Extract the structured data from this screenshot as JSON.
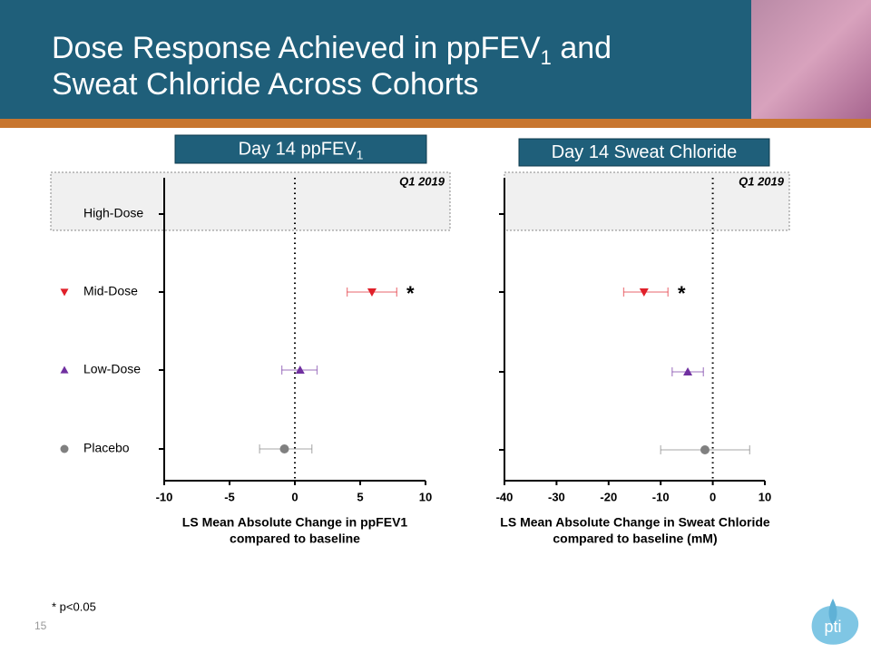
{
  "title": {
    "line1": [
      "Dose Response Achieved in ppFEV",
      "1",
      " and"
    ],
    "line2": "Sweat Chloride Across Cohorts"
  },
  "footnote": "* p<0.05",
  "page_number": "15",
  "logo": "pti",
  "chart_data": [
    {
      "type": "forest",
      "panel_title": [
        "Day 14 ppFEV",
        "1"
      ],
      "annotation": "Q1 2019",
      "categories": [
        "High-Dose",
        "Mid-Dose",
        "Low-Dose",
        "Placebo"
      ],
      "markers": [
        null,
        "triangle-down",
        "triangle-up",
        "circle"
      ],
      "colors": [
        null,
        "#e0202a",
        "#7030a0",
        "#808080"
      ],
      "values": [
        null,
        5.9,
        0.4,
        -0.8
      ],
      "ci_low": [
        null,
        4.0,
        -1.0,
        -2.7
      ],
      "ci_high": [
        null,
        7.8,
        1.7,
        1.3
      ],
      "significance": [
        null,
        "*",
        null,
        null
      ],
      "xlabel": [
        "LS Mean Absolute Change in ppFEV1",
        "compared to baseline"
      ],
      "xlim": [
        -10,
        10
      ],
      "xticks": [
        -10,
        -5,
        0,
        5,
        10
      ],
      "reference_line": 0
    },
    {
      "type": "forest",
      "panel_title": [
        "Day 14 Sweat Chloride"
      ],
      "annotation": "Q1 2019",
      "categories": [
        null,
        null,
        null,
        null
      ],
      "markers": [
        null,
        "triangle-down",
        "triangle-up",
        "circle"
      ],
      "colors": [
        null,
        "#e0202a",
        "#7030a0",
        "#808080"
      ],
      "values": [
        null,
        -13.2,
        -4.8,
        -1.5
      ],
      "ci_low": [
        null,
        -17.1,
        -7.8,
        -10
      ],
      "ci_high": [
        null,
        -8.6,
        -1.8,
        7.1
      ],
      "significance": [
        null,
        "*",
        null,
        null
      ],
      "xlabel": [
        "LS Mean Absolute Change in Sweat Chloride",
        "compared to baseline (mM)"
      ],
      "xlim": [
        -40,
        10
      ],
      "xticks": [
        -40,
        -30,
        -20,
        -10,
        0,
        10
      ],
      "reference_line": 0
    }
  ]
}
